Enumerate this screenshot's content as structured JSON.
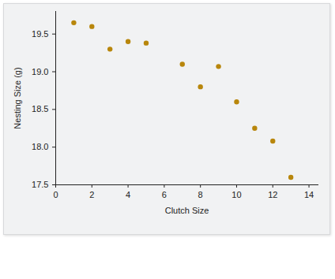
{
  "chart_data": {
    "type": "scatter",
    "x_label": "Clutch Size",
    "y_label": "Nesting Size (g)",
    "x": [
      1,
      2,
      3,
      4,
      5,
      7,
      8,
      9,
      10,
      11,
      12,
      13
    ],
    "values": [
      19.65,
      19.6,
      19.3,
      19.4,
      19.38,
      19.1,
      18.8,
      19.07,
      18.6,
      18.25,
      18.08,
      17.6
    ],
    "color": "#b8860b",
    "marker": "circle",
    "xlim": [
      0,
      14.5
    ],
    "xticks": [
      0,
      2,
      4,
      6,
      8,
      10,
      12,
      14
    ],
    "ylim": [
      17.5,
      19.8
    ],
    "yticks": [
      17.5,
      {
        "value": 18,
        "label": "18.0"
      },
      18.5,
      {
        "value": 19,
        "label": "19.0"
      },
      19.5
    ],
    "grid": false
  }
}
